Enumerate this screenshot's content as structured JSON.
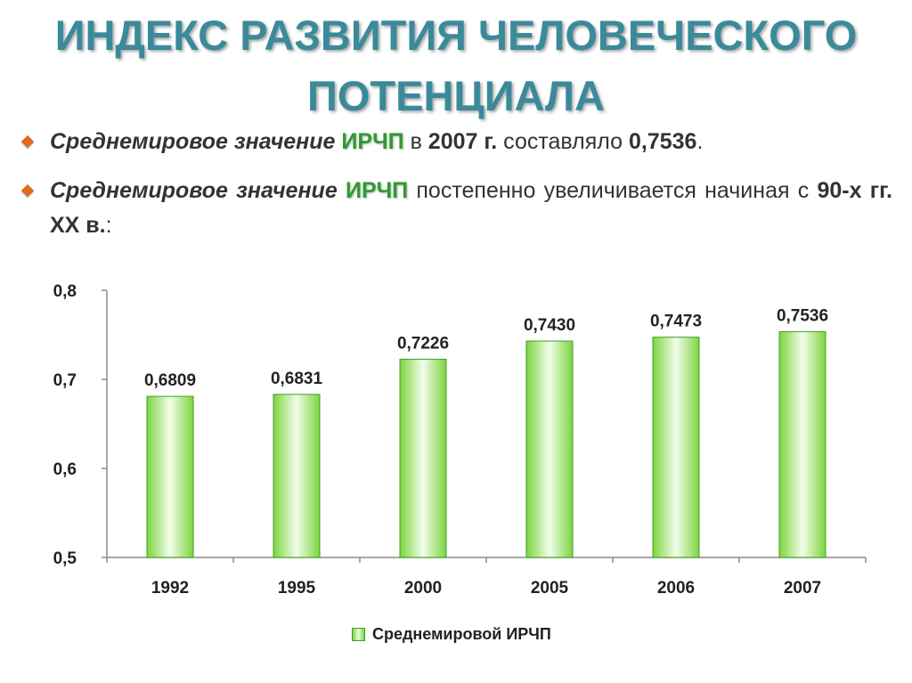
{
  "title": {
    "line1": "ИНДЕКС РАЗВИТИЯ ЧЕЛОВЕЧЕСКОГО",
    "line2": "ПОТЕНЦИАЛА"
  },
  "bullets": [
    {
      "lead": "Среднемировое значение",
      "term": "ИРЧП",
      "mid": "в",
      "year": "2007 г.",
      "verb": "составляло",
      "value": "0,7536",
      "end": "."
    },
    {
      "lead": "Среднемировое значение",
      "term": "ИРЧП",
      "rest": "постепенно увеличивается начиная с",
      "period": "90-х гг. XX в.",
      "end": ":"
    }
  ],
  "colors": {
    "title": "#3a8a9a",
    "bar": "#7dd43f",
    "bar_light": "#f2fdea",
    "bullet_marker": "#e06a1e",
    "highlight": "#2e9a2e"
  },
  "chart_data": {
    "type": "bar",
    "categories": [
      "1992",
      "1995",
      "2000",
      "2005",
      "2006",
      "2007"
    ],
    "series": [
      {
        "name": "Среднемировой ИРЧП",
        "values": [
          0.6809,
          0.6831,
          0.7226,
          0.743,
          0.7473,
          0.7536
        ],
        "labels": [
          "0,6809",
          "0,6831",
          "0,7226",
          "0,7430",
          "0,7473",
          "0,7536"
        ]
      }
    ],
    "ylim": [
      0.5,
      0.8
    ],
    "yticks": [
      0.5,
      0.6,
      0.7,
      0.8
    ],
    "ytick_labels": [
      "0,5",
      "0,6",
      "0,7",
      "0,8"
    ],
    "xlabel": "",
    "ylabel": "",
    "grid": false,
    "legend_position": "bottom"
  }
}
